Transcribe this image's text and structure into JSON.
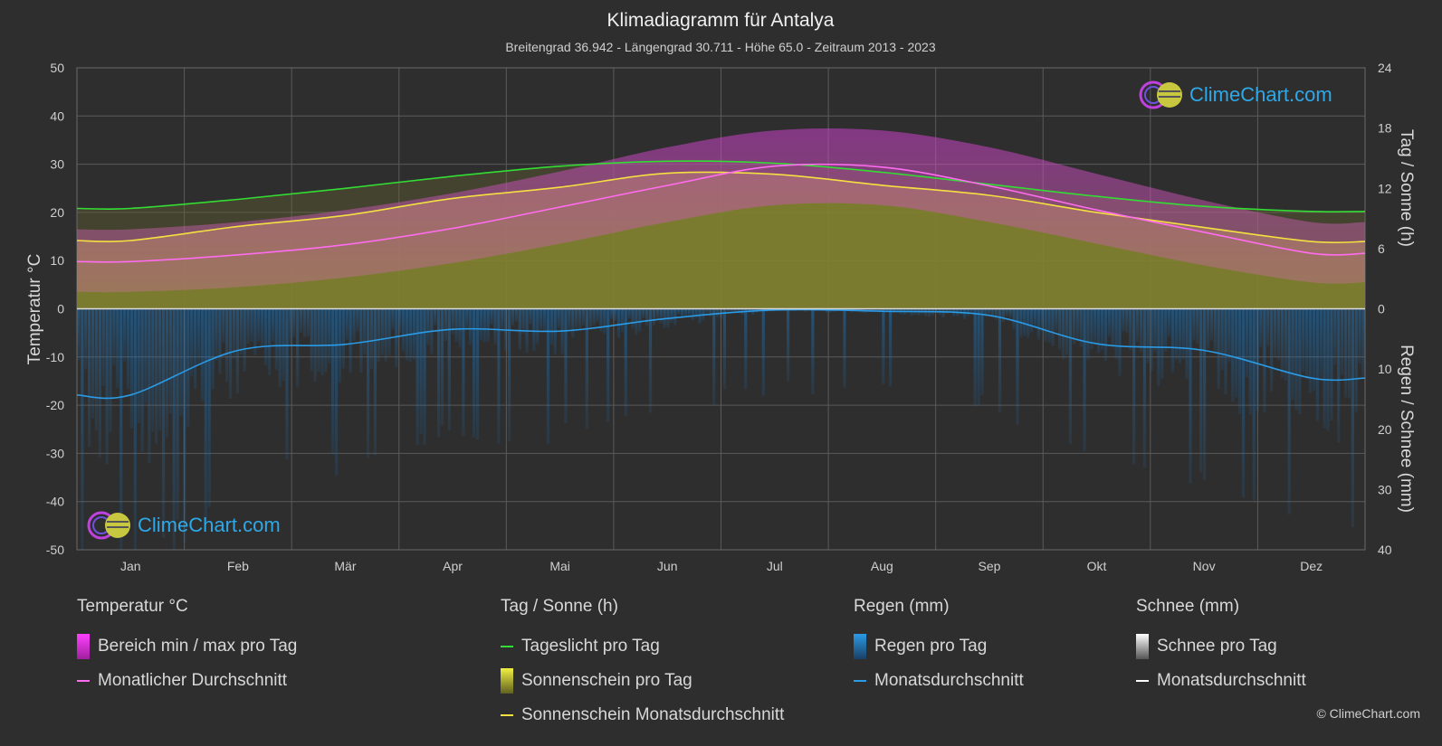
{
  "header": {
    "title": "Klimadiagramm für Antalya",
    "subtitle": "Breitengrad 36.942 - Längengrad 30.711 - Höhe 65.0 - Zeitraum 2013 - 2023"
  },
  "chart_data": {
    "type": "area",
    "categories": [
      "Jan",
      "Feb",
      "Mär",
      "Apr",
      "Mai",
      "Jun",
      "Jul",
      "Aug",
      "Sep",
      "Okt",
      "Nov",
      "Dez"
    ],
    "left_axis": {
      "label": "Temperatur °C",
      "range": [
        -50,
        50
      ],
      "ticks": [
        "50",
        "40",
        "30",
        "20",
        "10",
        "0",
        "-10",
        "-20",
        "-30",
        "-40",
        "-50"
      ]
    },
    "right_axis_top": {
      "label": "Tag / Sonne (h)",
      "range": [
        0,
        24
      ],
      "ticks": [
        "24",
        "18",
        "12",
        "6",
        "0"
      ]
    },
    "right_axis_bottom": {
      "label": "Regen / Schnee (mm)",
      "range": [
        0,
        40
      ],
      "ticks": [
        "0",
        "10",
        "20",
        "30",
        "40"
      ]
    },
    "series": [
      {
        "name": "Monatlicher Durchschnitt",
        "unit": "°C",
        "values": [
          9.8,
          11.2,
          13.3,
          16.7,
          21.1,
          25.6,
          29.6,
          29.4,
          25.5,
          20.5,
          15.9,
          11.5
        ]
      },
      {
        "name": "Temperatur Tagesminimum",
        "unit": "°C",
        "values": [
          3.5,
          4.5,
          6.5,
          9.5,
          13.5,
          18.0,
          21.5,
          21.5,
          18.0,
          13.5,
          9.0,
          5.5
        ]
      },
      {
        "name": "Temperatur Tagesmaximum",
        "unit": "°C",
        "values": [
          16.5,
          18.0,
          20.5,
          24.0,
          28.5,
          33.5,
          37.0,
          37.0,
          33.5,
          28.0,
          22.5,
          18.0
        ]
      },
      {
        "name": "Tageslicht pro Tag",
        "unit": "h",
        "values": [
          10.0,
          10.9,
          12.0,
          13.2,
          14.2,
          14.7,
          14.5,
          13.6,
          12.4,
          11.2,
          10.2,
          9.7
        ]
      },
      {
        "name": "Sonnenschein Monatsdurchschnitt",
        "unit": "h",
        "values": [
          6.8,
          8.2,
          9.3,
          11.0,
          12.1,
          13.5,
          13.4,
          12.3,
          11.3,
          9.6,
          8.1,
          6.7
        ]
      },
      {
        "name": "Regen Monatsdurchschnitt",
        "unit": "mm",
        "values": [
          14.3,
          6.9,
          5.9,
          3.4,
          3.7,
          1.6,
          0.2,
          0.4,
          1.1,
          5.8,
          6.9,
          11.5
        ]
      },
      {
        "name": "Schnee Monatsdurchschnitt",
        "unit": "mm",
        "values": [
          0,
          0,
          0,
          0,
          0,
          0,
          0,
          0,
          0,
          0,
          0,
          0
        ]
      }
    ],
    "colors": {
      "temp_band": "#c43fc4",
      "temp_avg": "#ff6cf0",
      "daylight": "#33dd33",
      "sun_fill": "#a0a030",
      "sun_avg": "#f4e040",
      "rain": "#1f8fe0",
      "rain_avg": "#2a9be6",
      "snow": "#ffffff"
    },
    "grid": true
  },
  "legend": {
    "temp": {
      "title": "Temperatur °C",
      "band": "Bereich min / max pro Tag",
      "avg": "Monatlicher Durchschnitt"
    },
    "sun": {
      "title": "Tag / Sonne (h)",
      "daylight": "Tageslicht pro Tag",
      "sun": "Sonnenschein pro Tag",
      "sun_avg": "Sonnenschein Monatsdurchschnitt"
    },
    "rain": {
      "title": "Regen (mm)",
      "rain": "Regen pro Tag",
      "avg": "Monatsdurchschnitt"
    },
    "snow": {
      "title": "Schnee (mm)",
      "snow": "Schnee pro Tag",
      "avg": "Monatsdurchschnitt"
    }
  },
  "branding": {
    "logo_text": "ClimeChart.com",
    "copyright": "© ClimeChart.com"
  }
}
